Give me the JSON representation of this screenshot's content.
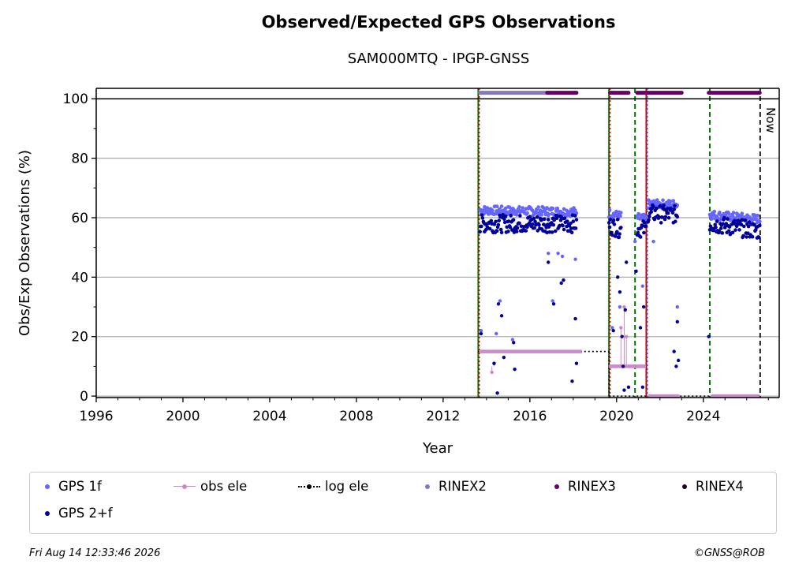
{
  "header": {
    "title": "Observed/Expected GPS Observations",
    "subtitle": "SAM000MTQ - IPGP-GNSS"
  },
  "footer": {
    "timestamp": "Fri Aug 14 12:33:46 2026",
    "credit": "©GNSS@ROB"
  },
  "colors": {
    "gps1f": "#6666ff",
    "gps2f": "#000099",
    "obs_ele": "#cc88cc",
    "log_ele": "#000000",
    "rinex2": "#8877bb",
    "rinex3": "#660066",
    "rinex4": "#220022",
    "green_marker": "#007700",
    "red_marker": "#cc0000",
    "blue_marker": "#3355cc",
    "grid": "#b0b0b0"
  },
  "legend": {
    "items": [
      {
        "label": "GPS 1f",
        "key": "gps1f"
      },
      {
        "label": "obs ele",
        "key": "obs_ele"
      },
      {
        "label": "log ele",
        "key": "log_ele"
      },
      {
        "label": "RINEX2",
        "key": "rinex2"
      },
      {
        "label": "RINEX3",
        "key": "rinex3"
      },
      {
        "label": "RINEX4",
        "key": "rinex4"
      },
      {
        "label": "GPS 2+f",
        "key": "gps2f"
      }
    ]
  },
  "chart_data": {
    "type": "scatter",
    "xlabel": "Year",
    "ylabel": "Obs/Exp Observations (%)",
    "xlim": [
      1996,
      2027.5
    ],
    "ylim": [
      -0.5,
      103.5
    ],
    "x_ticks": [
      1996,
      2000,
      2004,
      2008,
      2012,
      2016,
      2020,
      2024
    ],
    "y_ticks": [
      0,
      20,
      40,
      60,
      80,
      100
    ],
    "grid": "horizontal",
    "now_label": "Now",
    "now_x": 2026.62,
    "series": [
      {
        "name": "GPS 1f",
        "key": "gps1f",
        "segments": [
          {
            "x_start": 2013.7,
            "x_end": 2018.15,
            "y_start": 62.5,
            "y_end": 62.0
          },
          {
            "x_start": 2019.65,
            "x_end": 2020.2,
            "y_start": 61.5,
            "y_end": 60.5
          },
          {
            "x_start": 2020.95,
            "x_end": 2021.35,
            "y_start": 60.0,
            "y_end": 59.5
          },
          {
            "x_start": 2021.45,
            "x_end": 2022.8,
            "y_start": 64.5,
            "y_end": 64.5
          },
          {
            "x_start": 2024.3,
            "x_end": 2026.6,
            "y_start": 61.0,
            "y_end": 59.5
          }
        ],
        "outliers": [
          [
            2013.75,
            22
          ],
          [
            2014.45,
            21
          ],
          [
            2014.62,
            32
          ],
          [
            2015.2,
            19
          ],
          [
            2016.85,
            48
          ],
          [
            2017.05,
            32
          ],
          [
            2017.3,
            48
          ],
          [
            2017.5,
            47
          ],
          [
            2018.1,
            46
          ],
          [
            2019.8,
            23
          ],
          [
            2020.15,
            30
          ],
          [
            2020.85,
            52
          ],
          [
            2021.2,
            37
          ],
          [
            2021.7,
            52
          ],
          [
            2022.8,
            30
          ]
        ]
      },
      {
        "name": "GPS 2+f",
        "key": "gps2f",
        "segments": [
          {
            "x_start": 2013.7,
            "x_end": 2018.15,
            "y_start": 58.0,
            "y_end": 58.0
          },
          {
            "x_start": 2019.65,
            "x_end": 2020.2,
            "y_start": 57.5,
            "y_end": 56.0
          },
          {
            "x_start": 2020.95,
            "x_end": 2021.35,
            "y_start": 56.5,
            "y_end": 56.0
          },
          {
            "x_start": 2021.45,
            "x_end": 2022.8,
            "y_start": 61.5,
            "y_end": 61.0
          },
          {
            "x_start": 2024.3,
            "x_end": 2026.6,
            "y_start": 58.0,
            "y_end": 55.5
          }
        ],
        "outliers": [
          [
            2013.75,
            21
          ],
          [
            2014.35,
            11
          ],
          [
            2014.5,
            1
          ],
          [
            2014.55,
            31
          ],
          [
            2014.7,
            27
          ],
          [
            2014.8,
            13
          ],
          [
            2015.25,
            18
          ],
          [
            2015.3,
            9
          ],
          [
            2016.85,
            45
          ],
          [
            2017.1,
            31
          ],
          [
            2017.45,
            38
          ],
          [
            2017.55,
            39
          ],
          [
            2017.95,
            5
          ],
          [
            2018.1,
            26
          ],
          [
            2018.15,
            11
          ],
          [
            2019.85,
            22
          ],
          [
            2020.05,
            40
          ],
          [
            2020.15,
            35
          ],
          [
            2020.25,
            20
          ],
          [
            2020.3,
            10
          ],
          [
            2020.35,
            2
          ],
          [
            2020.4,
            29
          ],
          [
            2020.45,
            45
          ],
          [
            2020.55,
            3
          ],
          [
            2020.9,
            42
          ],
          [
            2021.1,
            23
          ],
          [
            2021.2,
            3
          ],
          [
            2021.25,
            30
          ],
          [
            2022.65,
            15
          ],
          [
            2022.75,
            10
          ],
          [
            2022.8,
            25
          ],
          [
            2022.85,
            12
          ],
          [
            2024.25,
            20
          ]
        ]
      },
      {
        "name": "obs ele",
        "key": "obs_ele",
        "segments": [
          {
            "x_start": 2013.7,
            "x_end": 2018.4,
            "y_start": 15,
            "y_end": 15
          },
          {
            "x_start": 2019.65,
            "x_end": 2021.35,
            "y_start": 10,
            "y_end": 10
          },
          {
            "x_start": 2021.45,
            "x_end": 2022.9,
            "y_start": 0,
            "y_end": 0
          },
          {
            "x_start": 2024.35,
            "x_end": 2026.6,
            "y_start": 0,
            "y_end": 0
          }
        ],
        "spikes": [
          [
            2014.25,
            8
          ],
          [
            2014.35,
            11
          ],
          [
            2020.2,
            23
          ],
          [
            2020.35,
            30
          ],
          [
            2020.45,
            20
          ]
        ]
      },
      {
        "name": "log ele",
        "key": "log_ele",
        "steps": [
          {
            "x_start": 2013.6,
            "x_end": 2019.65,
            "y": 15
          },
          {
            "x_start": 2019.65,
            "x_end": 2026.62,
            "y": 0
          }
        ]
      },
      {
        "name": "RINEX2",
        "key": "rinex2",
        "y": 102,
        "ranges": [
          [
            2013.7,
            2016.8
          ]
        ]
      },
      {
        "name": "RINEX3",
        "key": "rinex3",
        "y": 102,
        "ranges": [
          [
            2016.8,
            2018.15
          ],
          [
            2019.7,
            2020.55
          ],
          [
            2020.95,
            2023.0
          ],
          [
            2024.25,
            2026.6
          ]
        ]
      },
      {
        "name": "RINEX4",
        "key": "rinex4",
        "y": 102,
        "ranges": []
      }
    ],
    "vertical_markers": [
      {
        "x": 2013.62,
        "color_key": "green_marker",
        "style": "solid"
      },
      {
        "x": 2013.66,
        "color_key": "red_marker",
        "style": "dotted"
      },
      {
        "x": 2019.65,
        "color_key": "green_marker",
        "style": "solid"
      },
      {
        "x": 2019.69,
        "color_key": "red_marker",
        "style": "dotted"
      },
      {
        "x": 2020.85,
        "color_key": "green_marker",
        "style": "dashed"
      },
      {
        "x": 2021.37,
        "color_key": "red_marker",
        "style": "solid"
      },
      {
        "x": 2021.41,
        "color_key": "blue_marker",
        "style": "dotted"
      },
      {
        "x": 2024.3,
        "color_key": "green_marker",
        "style": "dashed"
      }
    ]
  }
}
